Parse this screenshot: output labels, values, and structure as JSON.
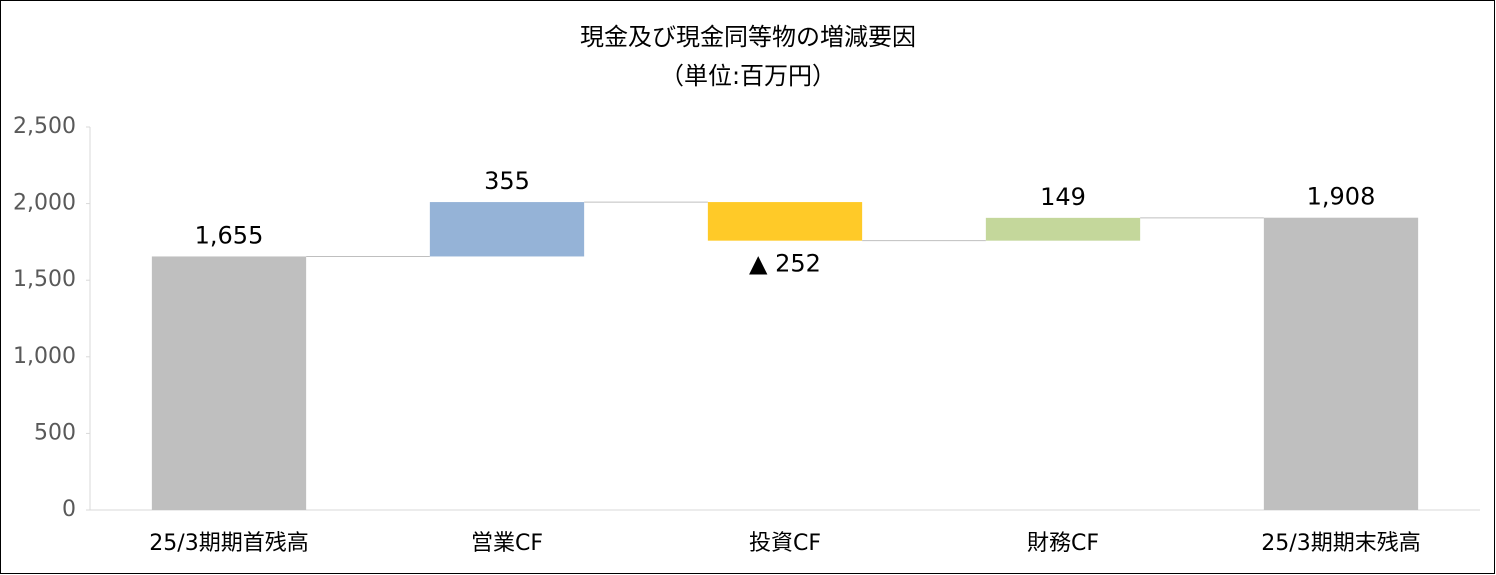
{
  "chart_data": {
    "type": "waterfall",
    "title": "現金及び現金同等物の増減要因",
    "subtitle": "（単位:百万円）",
    "categories": [
      "25/3期期首残高",
      "営業CF",
      "投資CF",
      "財務CF",
      "25/3期期末残高"
    ],
    "values": [
      1655,
      355,
      -252,
      149,
      1908
    ],
    "value_labels": [
      "1,655",
      "355",
      "▲ 252",
      "149",
      "1,908"
    ],
    "colors": [
      "#bfbfbf",
      "#95b3d7",
      "#ffca28",
      "#c4d79b",
      "#bfbfbf"
    ],
    "ylim": [
      0,
      2500
    ],
    "yticks": [
      0,
      {
        "value": 500,
        "label": "500"
      },
      {
        "value": 1000,
        "label": "1,000"
      },
      {
        "value": 1500,
        "label": "1,500"
      },
      {
        "value": 2000,
        "label": "2,000"
      },
      {
        "value": 2500,
        "label": "2,500"
      }
    ],
    "grid": false
  }
}
